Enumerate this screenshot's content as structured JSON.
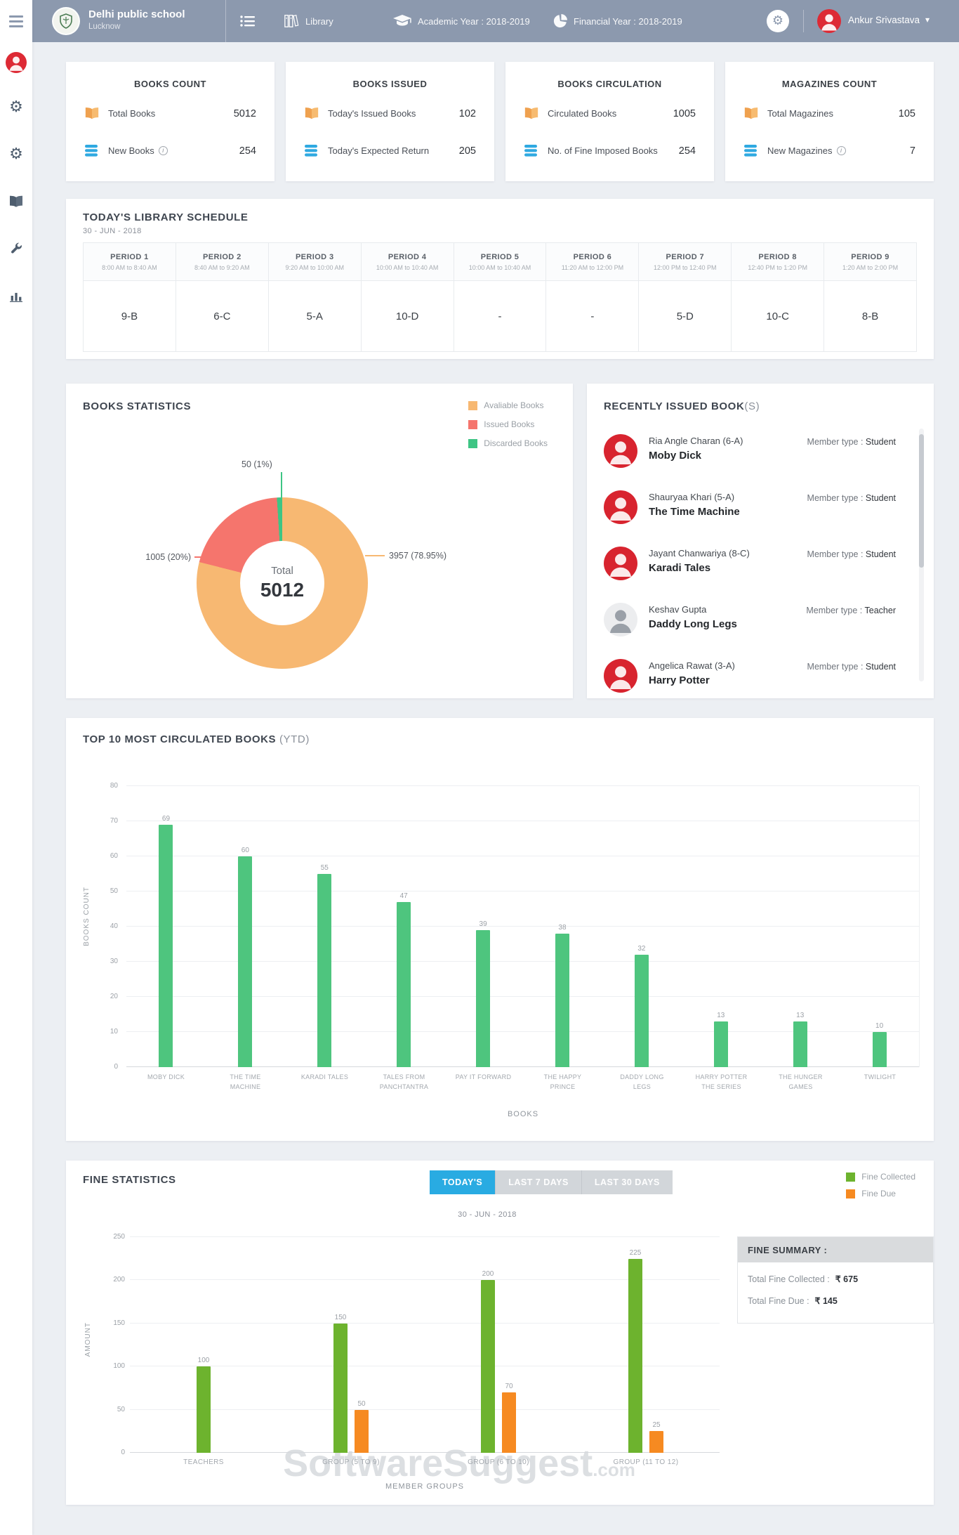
{
  "header": {
    "school_name": "Delhi public school",
    "school_city": "Lucknow",
    "module_label": "Library",
    "academic_year": "Academic Year : 2018-2019",
    "financial_year": "Financial Year : 2018-2019",
    "user_name": "Ankur Srivastava"
  },
  "sidebar": {
    "items": [
      "profile",
      "administration",
      "settings",
      "library",
      "tools",
      "reports"
    ]
  },
  "stat_cards": [
    {
      "title": "BOOKS COUNT",
      "rows": [
        {
          "icon": "open-book",
          "label": "Total Books",
          "info": false,
          "value": "5012"
        },
        {
          "icon": "stack",
          "label": "New Books",
          "info": true,
          "value": "254"
        }
      ]
    },
    {
      "title": "BOOKS ISSUED",
      "rows": [
        {
          "icon": "open-book",
          "label": "Today's Issued Books",
          "info": false,
          "value": "102"
        },
        {
          "icon": "stack",
          "label": "Today's Expected Return",
          "info": false,
          "value": "205"
        }
      ]
    },
    {
      "title": "BOOKS CIRCULATION",
      "rows": [
        {
          "icon": "open-book",
          "label": "Circulated Books",
          "info": false,
          "value": "1005"
        },
        {
          "icon": "stack",
          "label": "No. of Fine Imposed Books",
          "info": false,
          "value": "254"
        }
      ]
    },
    {
      "title": "MAGAZINES COUNT",
      "rows": [
        {
          "icon": "open-book",
          "label": "Total Magazines",
          "info": false,
          "value": "105"
        },
        {
          "icon": "stack",
          "label": "New Magazines",
          "info": true,
          "value": "7"
        }
      ]
    }
  ],
  "schedule": {
    "title": "TODAY'S LIBRARY SCHEDULE",
    "date": "30 - JUN - 2018",
    "periods": [
      {
        "name": "PERIOD 1",
        "time": "8:00 AM to 8:40 AM",
        "class": "9-B"
      },
      {
        "name": "PERIOD 2",
        "time": "8:40 AM to 9:20 AM",
        "class": "6-C"
      },
      {
        "name": "PERIOD 3",
        "time": "9:20 AM to 10:00 AM",
        "class": "5-A"
      },
      {
        "name": "PERIOD 4",
        "time": "10:00 AM to 10:40 AM",
        "class": "10-D"
      },
      {
        "name": "PERIOD 5",
        "time": "10:00 AM to 10:40 AM",
        "class": "-"
      },
      {
        "name": "PERIOD 6",
        "time": "11:20 AM to 12:00 PM",
        "class": "-"
      },
      {
        "name": "PERIOD 7",
        "time": "12:00 PM to 12:40 PM",
        "class": "5-D"
      },
      {
        "name": "PERIOD 8",
        "time": "12:40 PM to 1:20 PM",
        "class": "10-C"
      },
      {
        "name": "PERIOD 9",
        "time": "1:20 AM to 2:00 PM",
        "class": "8-B"
      }
    ]
  },
  "recently_issued": {
    "title": "RECENTLY ISSUED BOOK",
    "title_suffix": "(S)",
    "member_type_label": "Member type :",
    "items": [
      {
        "member": "Ria Angle Charan (6-A)",
        "book": "Moby Dick",
        "member_type": "Student"
      },
      {
        "member": "Shauryaa Khari (5-A)",
        "book": "The Time Machine",
        "member_type": "Student"
      },
      {
        "member": "Jayant Chanwariya (8-C)",
        "book": "Karadi Tales",
        "member_type": "Student"
      },
      {
        "member": "Keshav Gupta",
        "book": "Daddy Long Legs",
        "member_type": "Teacher"
      },
      {
        "member": "Angelica Rawat (3-A)",
        "book": "Harry Potter",
        "member_type": "Student"
      }
    ]
  },
  "fine": {
    "title": "FINE STATISTICS",
    "buttons": [
      "TODAY'S",
      "LAST 7 DAYS",
      "LAST 30 DAYS"
    ],
    "active_button": "TODAY'S",
    "date": "30 - JUN - 2018",
    "summary": {
      "title": "FINE SUMMARY :",
      "collected_label": "Total Fine Collected :",
      "collected_value": "₹ 675",
      "due_label": "Total Fine Due :",
      "due_value": "₹ 145"
    }
  },
  "watermark": {
    "text": "SoftwareSuggest",
    "suffix": ".com"
  },
  "chart_data": [
    {
      "type": "pie",
      "title": "BOOKS STATISTICS",
      "labels": [
        "Avaliable Books",
        "Issued Books",
        "Discarded Books"
      ],
      "values": [
        3957,
        1005,
        50
      ],
      "colors": [
        "#F7B872",
        "#F5756D",
        "#3EC584"
      ],
      "callouts": [
        "3957 (78.95%)",
        "1005 (20%)",
        "50 (1%)"
      ],
      "center_label": "Total",
      "center_value": "5012",
      "legend_position": "top-right"
    },
    {
      "type": "bar",
      "title": "TOP 10 MOST CIRCULATED BOOKS",
      "title_suffix": " (YTD)",
      "categories": [
        [
          "MOBY DICK"
        ],
        [
          "THE TIME",
          "MACHINE"
        ],
        [
          "KARADI TALES"
        ],
        [
          "TALES FROM",
          "PANCHTANTRA"
        ],
        [
          "PAY IT FORWARD"
        ],
        [
          "THE HAPPY",
          "PRINCE"
        ],
        [
          "DADDY LONG",
          "LEGS"
        ],
        [
          "HARRY POTTER",
          "THE SERIES"
        ],
        [
          "THE HUNGER",
          "GAMES"
        ],
        [
          "TWILIGHT"
        ]
      ],
      "values": [
        69,
        60,
        55,
        47,
        39,
        38,
        32,
        13,
        13,
        10
      ],
      "bar_color": "#4EC57E",
      "xlabel": "BOOKS",
      "ylabel": "BOOKS COUNT",
      "ylim": [
        0,
        80
      ],
      "ytick_step": 10,
      "grid": true
    },
    {
      "type": "bar",
      "title": "FINE STATISTICS",
      "categories": [
        "TEACHERS",
        "GROUP (5 TO 9)",
        "GROUP (6 TO 10)",
        "GROUP (11 TO 12)"
      ],
      "series": [
        {
          "name": "Fine Collected",
          "color": "#6DB32E",
          "values": [
            100,
            150,
            200,
            225
          ]
        },
        {
          "name": "Fine Due",
          "color": "#F68A21",
          "values": [
            null,
            50,
            70,
            25
          ]
        }
      ],
      "xlabel": "MEMBER GROUPS",
      "ylabel": "AMOUNT",
      "ylim": [
        0,
        250
      ],
      "ytick_step": 50,
      "grid": true
    }
  ]
}
